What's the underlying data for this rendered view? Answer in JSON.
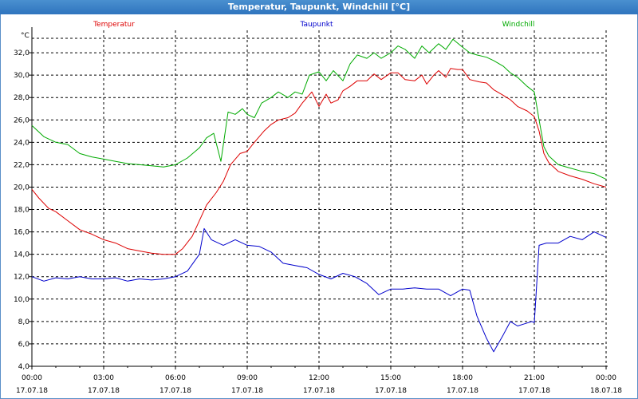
{
  "window": {
    "title": "Temperatur, Taupunkt, Windchill [°C]"
  },
  "chart_data": {
    "type": "line",
    "title": "Temperatur, Taupunkt, Windchill [°C]",
    "ylabel": "°C",
    "ylim": [
      4.0,
      34.0
    ],
    "yticks": [
      4.0,
      6.0,
      8.0,
      10.0,
      12.0,
      14.0,
      16.0,
      18.0,
      20.0,
      22.0,
      24.0,
      26.0,
      28.0,
      30.0,
      32.0
    ],
    "ytick_labels": [
      "4,0",
      "6,0",
      "8,0",
      "10,0",
      "12,0",
      "14,0",
      "16,0",
      "18,0",
      "20,0",
      "22,0",
      "24,0",
      "26,0",
      "28,0",
      "30,0",
      "32,0"
    ],
    "xlim": [
      0,
      24
    ],
    "xticks": [
      0,
      3,
      6,
      9,
      12,
      15,
      18,
      21,
      24
    ],
    "xtick_times": [
      "00:00",
      "03:00",
      "06:00",
      "09:00",
      "12:00",
      "15:00",
      "18:00",
      "21:00",
      "00:00"
    ],
    "xtick_dates": [
      "17.07.18",
      "17.07.18",
      "17.07.18",
      "17.07.18",
      "17.07.18",
      "17.07.18",
      "17.07.18",
      "17.07.18",
      "18.07.18"
    ],
    "grid": true,
    "series": [
      {
        "name": "Temperatur",
        "color": "#dd0000",
        "x": [
          0,
          0.3,
          0.7,
          1.0,
          1.5,
          2.0,
          2.5,
          3.0,
          3.5,
          4.0,
          4.5,
          5.0,
          5.5,
          6.0,
          6.3,
          6.7,
          7.0,
          7.3,
          7.7,
          8.0,
          8.3,
          8.7,
          9.0,
          9.3,
          9.7,
          10.0,
          10.3,
          10.7,
          11.0,
          11.3,
          11.7,
          12.0,
          12.3,
          12.5,
          12.8,
          13.0,
          13.3,
          13.6,
          14.0,
          14.3,
          14.6,
          15.0,
          15.3,
          15.6,
          16.0,
          16.3,
          16.5,
          16.8,
          17.0,
          17.3,
          17.5,
          17.8,
          18.0,
          18.3,
          18.7,
          19.0,
          19.3,
          19.7,
          20.0,
          20.3,
          20.7,
          21.0,
          21.2,
          21.4,
          21.6,
          22.0,
          22.5,
          23.0,
          23.5,
          24.0
        ],
        "values": [
          19.8,
          19.0,
          18.1,
          17.8,
          17.0,
          16.2,
          15.8,
          15.3,
          15.0,
          14.5,
          14.3,
          14.1,
          14.0,
          14.0,
          14.5,
          15.6,
          17.0,
          18.4,
          19.5,
          20.5,
          22.0,
          23.0,
          23.2,
          24.0,
          25.0,
          25.6,
          26.0,
          26.2,
          26.6,
          27.5,
          28.5,
          27.2,
          28.3,
          27.5,
          27.8,
          28.6,
          29.0,
          29.5,
          29.5,
          30.1,
          29.6,
          30.2,
          30.2,
          29.6,
          29.5,
          30.0,
          29.2,
          30.0,
          30.4,
          29.8,
          30.6,
          30.5,
          30.5,
          29.6,
          29.4,
          29.3,
          28.7,
          28.2,
          27.8,
          27.2,
          26.8,
          26.3,
          25.0,
          23.0,
          22.2,
          21.4,
          21.0,
          20.7,
          20.3,
          20.0
        ]
      },
      {
        "name": "Taupunkt",
        "color": "#0000cc",
        "x": [
          0,
          0.5,
          1.0,
          1.5,
          2.0,
          2.5,
          3.0,
          3.5,
          4.0,
          4.5,
          5.0,
          5.5,
          6.0,
          6.5,
          7.0,
          7.2,
          7.5,
          8.0,
          8.5,
          9.0,
          9.5,
          10.0,
          10.5,
          11.0,
          11.5,
          12.0,
          12.5,
          13.0,
          13.5,
          14.0,
          14.5,
          15.0,
          15.5,
          16.0,
          16.5,
          17.0,
          17.5,
          18.0,
          18.3,
          18.6,
          19.0,
          19.3,
          19.7,
          20.0,
          20.3,
          20.6,
          20.9,
          21.0,
          21.2,
          21.5,
          22.0,
          22.5,
          23.0,
          23.5,
          24.0
        ],
        "values": [
          12.0,
          11.6,
          11.9,
          11.8,
          12.0,
          11.8,
          11.8,
          11.9,
          11.6,
          11.8,
          11.7,
          11.8,
          12.0,
          12.5,
          14.0,
          16.3,
          15.3,
          14.8,
          15.3,
          14.8,
          14.7,
          14.2,
          13.2,
          13.0,
          12.8,
          12.2,
          11.8,
          12.3,
          12.0,
          11.4,
          10.4,
          10.9,
          10.9,
          11.0,
          10.9,
          10.9,
          10.3,
          10.9,
          10.8,
          8.5,
          6.5,
          5.3,
          6.8,
          8.0,
          7.6,
          7.8,
          8.0,
          7.9,
          14.8,
          15.0,
          15.0,
          15.6,
          15.3,
          16.0,
          15.5
        ]
      },
      {
        "name": "Windchill",
        "color": "#00aa00",
        "x": [
          0,
          0.5,
          1.0,
          1.5,
          2.0,
          2.5,
          3.0,
          3.5,
          4.0,
          4.5,
          5.0,
          5.5,
          6.0,
          6.5,
          7.0,
          7.3,
          7.6,
          7.9,
          8.2,
          8.5,
          8.8,
          9.0,
          9.3,
          9.6,
          10.0,
          10.3,
          10.7,
          11.0,
          11.3,
          11.6,
          12.0,
          12.3,
          12.6,
          13.0,
          13.3,
          13.6,
          14.0,
          14.3,
          14.6,
          15.0,
          15.3,
          15.6,
          16.0,
          16.3,
          16.6,
          17.0,
          17.3,
          17.6,
          18.0,
          18.3,
          18.6,
          19.0,
          19.3,
          19.7,
          20.0,
          20.3,
          20.7,
          21.0,
          21.2,
          21.4,
          21.6,
          22.0,
          22.5,
          23.0,
          23.5,
          24.0
        ],
        "values": [
          25.5,
          24.5,
          24.0,
          23.8,
          23.0,
          22.7,
          22.5,
          22.3,
          22.1,
          22.0,
          21.9,
          21.8,
          22.0,
          22.6,
          23.5,
          24.4,
          24.8,
          22.3,
          26.7,
          26.5,
          27.0,
          26.5,
          26.2,
          27.5,
          28.0,
          28.5,
          28.0,
          28.5,
          28.3,
          30.0,
          30.3,
          29.5,
          30.4,
          29.5,
          31.0,
          31.8,
          31.5,
          32.0,
          31.5,
          32.0,
          32.6,
          32.3,
          31.5,
          32.6,
          32.0,
          32.8,
          32.3,
          33.2,
          32.5,
          32.0,
          31.8,
          31.6,
          31.3,
          30.8,
          30.2,
          29.8,
          29.0,
          28.5,
          26.0,
          23.6,
          22.8,
          22.0,
          21.7,
          21.4,
          21.2,
          20.7
        ]
      }
    ]
  }
}
